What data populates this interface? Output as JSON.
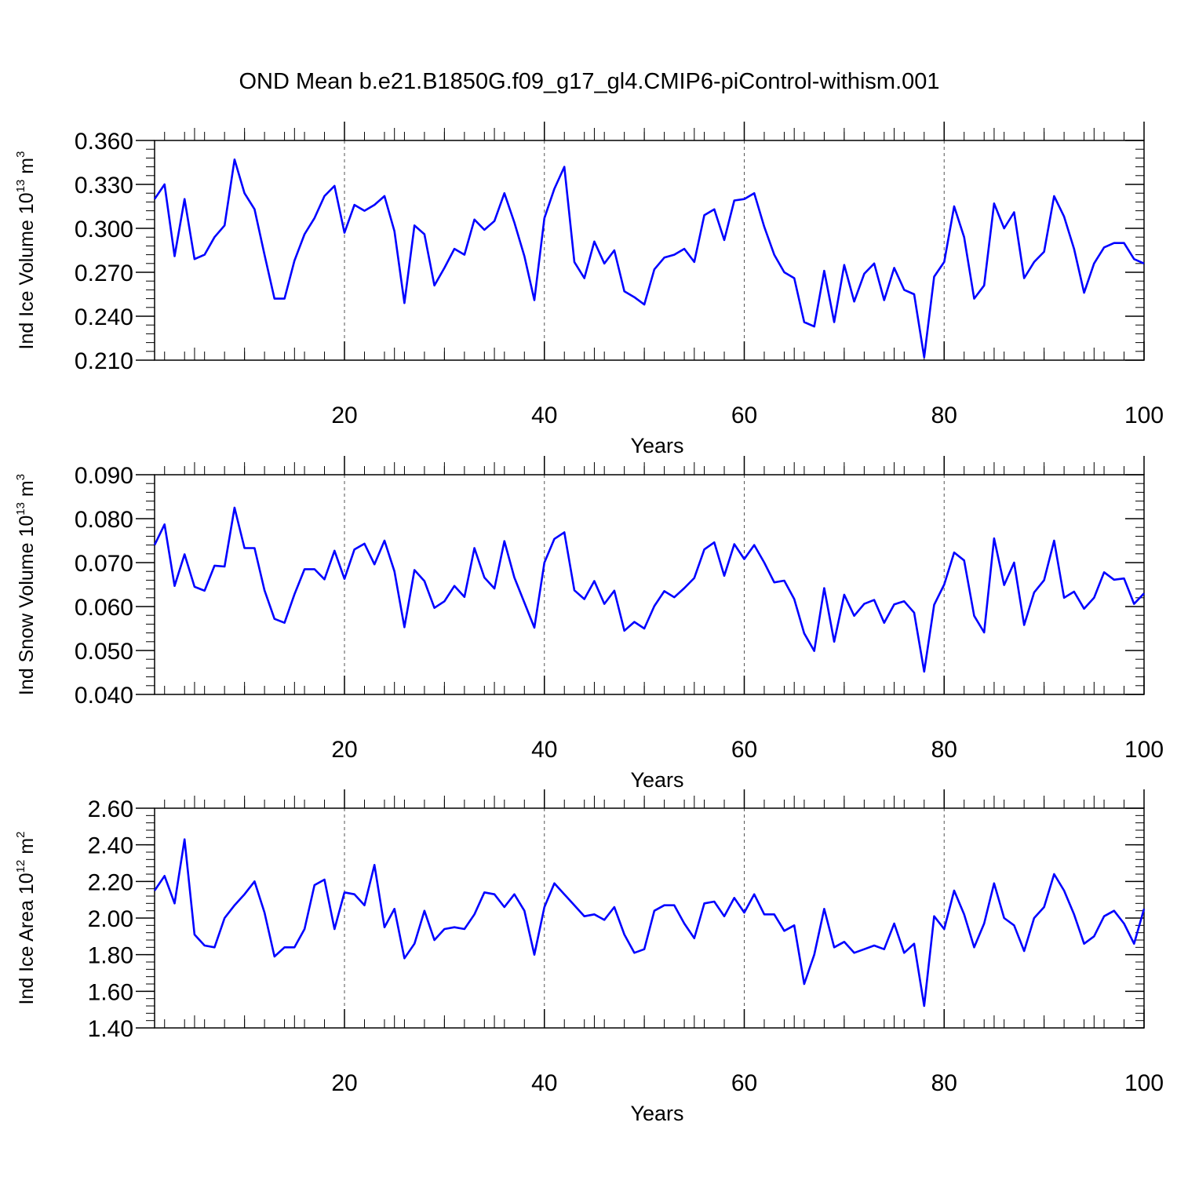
{
  "chart_data": {
    "type": "line",
    "title": "OND Mean b.e21.B1850G.f09_g17_gl4.CMIP6-piControl-withism.001",
    "line_color": "#0000ff",
    "panels": [
      {
        "name": "ice-volume",
        "ylabel": "Ind Ice Volume 10",
        "ylabel_exp": "13",
        "ylabel_unit": " m",
        "ylabel_unit_exp": "3",
        "xlabel": "Years",
        "ylim": [
          0.21,
          0.36
        ],
        "xlim": [
          1,
          100
        ],
        "yticks": [
          0.21,
          0.24,
          0.27,
          0.3,
          0.33,
          0.36
        ],
        "yticklabels": [
          "0.210",
          "0.240",
          "0.270",
          "0.300",
          "0.330",
          "0.360"
        ],
        "yminor": 0.006,
        "xticks": [
          20,
          40,
          60,
          80,
          100
        ],
        "xticklabels": [
          "20",
          "40",
          "60",
          "80",
          "100"
        ],
        "gridlines": [
          20,
          40,
          60,
          80
        ],
        "values": [
          0.32,
          0.33,
          0.281,
          0.32,
          0.279,
          0.282,
          0.294,
          0.302,
          0.347,
          0.324,
          0.313,
          0.282,
          0.252,
          0.252,
          0.278,
          0.296,
          0.307,
          0.322,
          0.329,
          0.297,
          0.316,
          0.312,
          0.316,
          0.322,
          0.298,
          0.249,
          0.302,
          0.296,
          0.261,
          0.273,
          0.286,
          0.282,
          0.306,
          0.299,
          0.305,
          0.324,
          0.304,
          0.281,
          0.251,
          0.307,
          0.327,
          0.342,
          0.277,
          0.266,
          0.291,
          0.276,
          0.285,
          0.257,
          0.253,
          0.248,
          0.272,
          0.28,
          0.282,
          0.286,
          0.277,
          0.309,
          0.313,
          0.292,
          0.319,
          0.32,
          0.324,
          0.301,
          0.282,
          0.27,
          0.266,
          0.236,
          0.233,
          0.271,
          0.236,
          0.275,
          0.25,
          0.269,
          0.276,
          0.251,
          0.273,
          0.258,
          0.255,
          0.212,
          0.267,
          0.277,
          0.315,
          0.294,
          0.252,
          0.261,
          0.317,
          0.3,
          0.311,
          0.266,
          0.277,
          0.284,
          0.322,
          0.308,
          0.286,
          0.256,
          0.276,
          0.287,
          0.29,
          0.29,
          0.279,
          0.276
        ]
      },
      {
        "name": "snow-volume",
        "ylabel": "Ind Snow Volume 10",
        "ylabel_exp": "13",
        "ylabel_unit": " m",
        "ylabel_unit_exp": "3",
        "xlabel": "Years",
        "ylim": [
          0.04,
          0.09
        ],
        "xlim": [
          1,
          100
        ],
        "yticks": [
          0.04,
          0.05,
          0.06,
          0.07,
          0.08,
          0.09
        ],
        "yticklabels": [
          "0.040",
          "0.050",
          "0.060",
          "0.070",
          "0.080",
          "0.090"
        ],
        "yminor": 0.002,
        "xticks": [
          20,
          40,
          60,
          80,
          100
        ],
        "xticklabels": [
          "20",
          "40",
          "60",
          "80",
          "100"
        ],
        "gridlines": [
          20,
          40,
          60,
          80
        ],
        "values": [
          0.074,
          0.0787,
          0.0647,
          0.0719,
          0.0645,
          0.0636,
          0.0693,
          0.0691,
          0.0825,
          0.0733,
          0.0733,
          0.0637,
          0.0572,
          0.0563,
          0.0628,
          0.0685,
          0.0685,
          0.0662,
          0.0727,
          0.0663,
          0.073,
          0.0743,
          0.0696,
          0.075,
          0.068,
          0.0553,
          0.0683,
          0.0658,
          0.0597,
          0.0612,
          0.0647,
          0.0622,
          0.0733,
          0.0666,
          0.0641,
          0.0749,
          0.0666,
          0.0609,
          0.0552,
          0.07,
          0.0754,
          0.0769,
          0.0637,
          0.0617,
          0.0658,
          0.0606,
          0.0636,
          0.0545,
          0.0565,
          0.055,
          0.0601,
          0.0635,
          0.0621,
          0.0642,
          0.0665,
          0.073,
          0.0746,
          0.067,
          0.0742,
          0.0708,
          0.074,
          0.07,
          0.0655,
          0.0659,
          0.0617,
          0.0539,
          0.0499,
          0.0642,
          0.052,
          0.0627,
          0.0579,
          0.0606,
          0.0615,
          0.0563,
          0.0605,
          0.0612,
          0.0586,
          0.0452,
          0.0604,
          0.065,
          0.0723,
          0.0705,
          0.0579,
          0.0541,
          0.0755,
          0.0649,
          0.07,
          0.0558,
          0.0632,
          0.066,
          0.075,
          0.062,
          0.0634,
          0.0595,
          0.062,
          0.0678,
          0.0661,
          0.0664,
          0.0606,
          0.063
        ]
      },
      {
        "name": "ice-area",
        "ylabel": "Ind Ice Area 10",
        "ylabel_exp": "12",
        "ylabel_unit": " m",
        "ylabel_unit_exp": "2",
        "xlabel": "Years",
        "ylim": [
          1.4,
          2.6
        ],
        "xlim": [
          1,
          100
        ],
        "yticks": [
          1.4,
          1.6,
          1.8,
          2.0,
          2.2,
          2.4,
          2.6
        ],
        "yticklabels": [
          "1.40",
          "1.60",
          "1.80",
          "2.00",
          "2.20",
          "2.40",
          "2.60"
        ],
        "yminor": 0.04,
        "xticks": [
          20,
          40,
          60,
          80,
          100
        ],
        "xticklabels": [
          "20",
          "40",
          "60",
          "80",
          "100"
        ],
        "gridlines": [
          20,
          40,
          60,
          80
        ],
        "values": [
          2.15,
          2.23,
          2.08,
          2.43,
          1.91,
          1.85,
          1.84,
          2.0,
          2.07,
          2.13,
          2.2,
          2.03,
          1.79,
          1.84,
          1.84,
          1.94,
          2.18,
          2.21,
          1.94,
          2.14,
          2.13,
          2.07,
          2.29,
          1.95,
          2.05,
          1.78,
          1.86,
          2.04,
          1.88,
          1.94,
          1.95,
          1.94,
          2.02,
          2.14,
          2.13,
          2.06,
          2.13,
          2.04,
          1.8,
          2.06,
          2.19,
          2.13,
          2.07,
          2.01,
          2.02,
          1.99,
          2.06,
          1.91,
          1.81,
          1.83,
          2.04,
          2.07,
          2.07,
          1.97,
          1.89,
          2.08,
          2.09,
          2.01,
          2.11,
          2.03,
          2.13,
          2.02,
          2.02,
          1.93,
          1.96,
          1.64,
          1.8,
          2.05,
          1.84,
          1.87,
          1.81,
          1.83,
          1.85,
          1.83,
          1.97,
          1.81,
          1.86,
          1.52,
          2.01,
          1.94,
          2.15,
          2.02,
          1.84,
          1.97,
          2.19,
          2.0,
          1.96,
          1.82,
          2.0,
          2.06,
          2.24,
          2.15,
          2.02,
          1.86,
          1.9,
          2.01,
          2.04,
          1.97,
          1.86,
          2.05
        ]
      }
    ]
  }
}
